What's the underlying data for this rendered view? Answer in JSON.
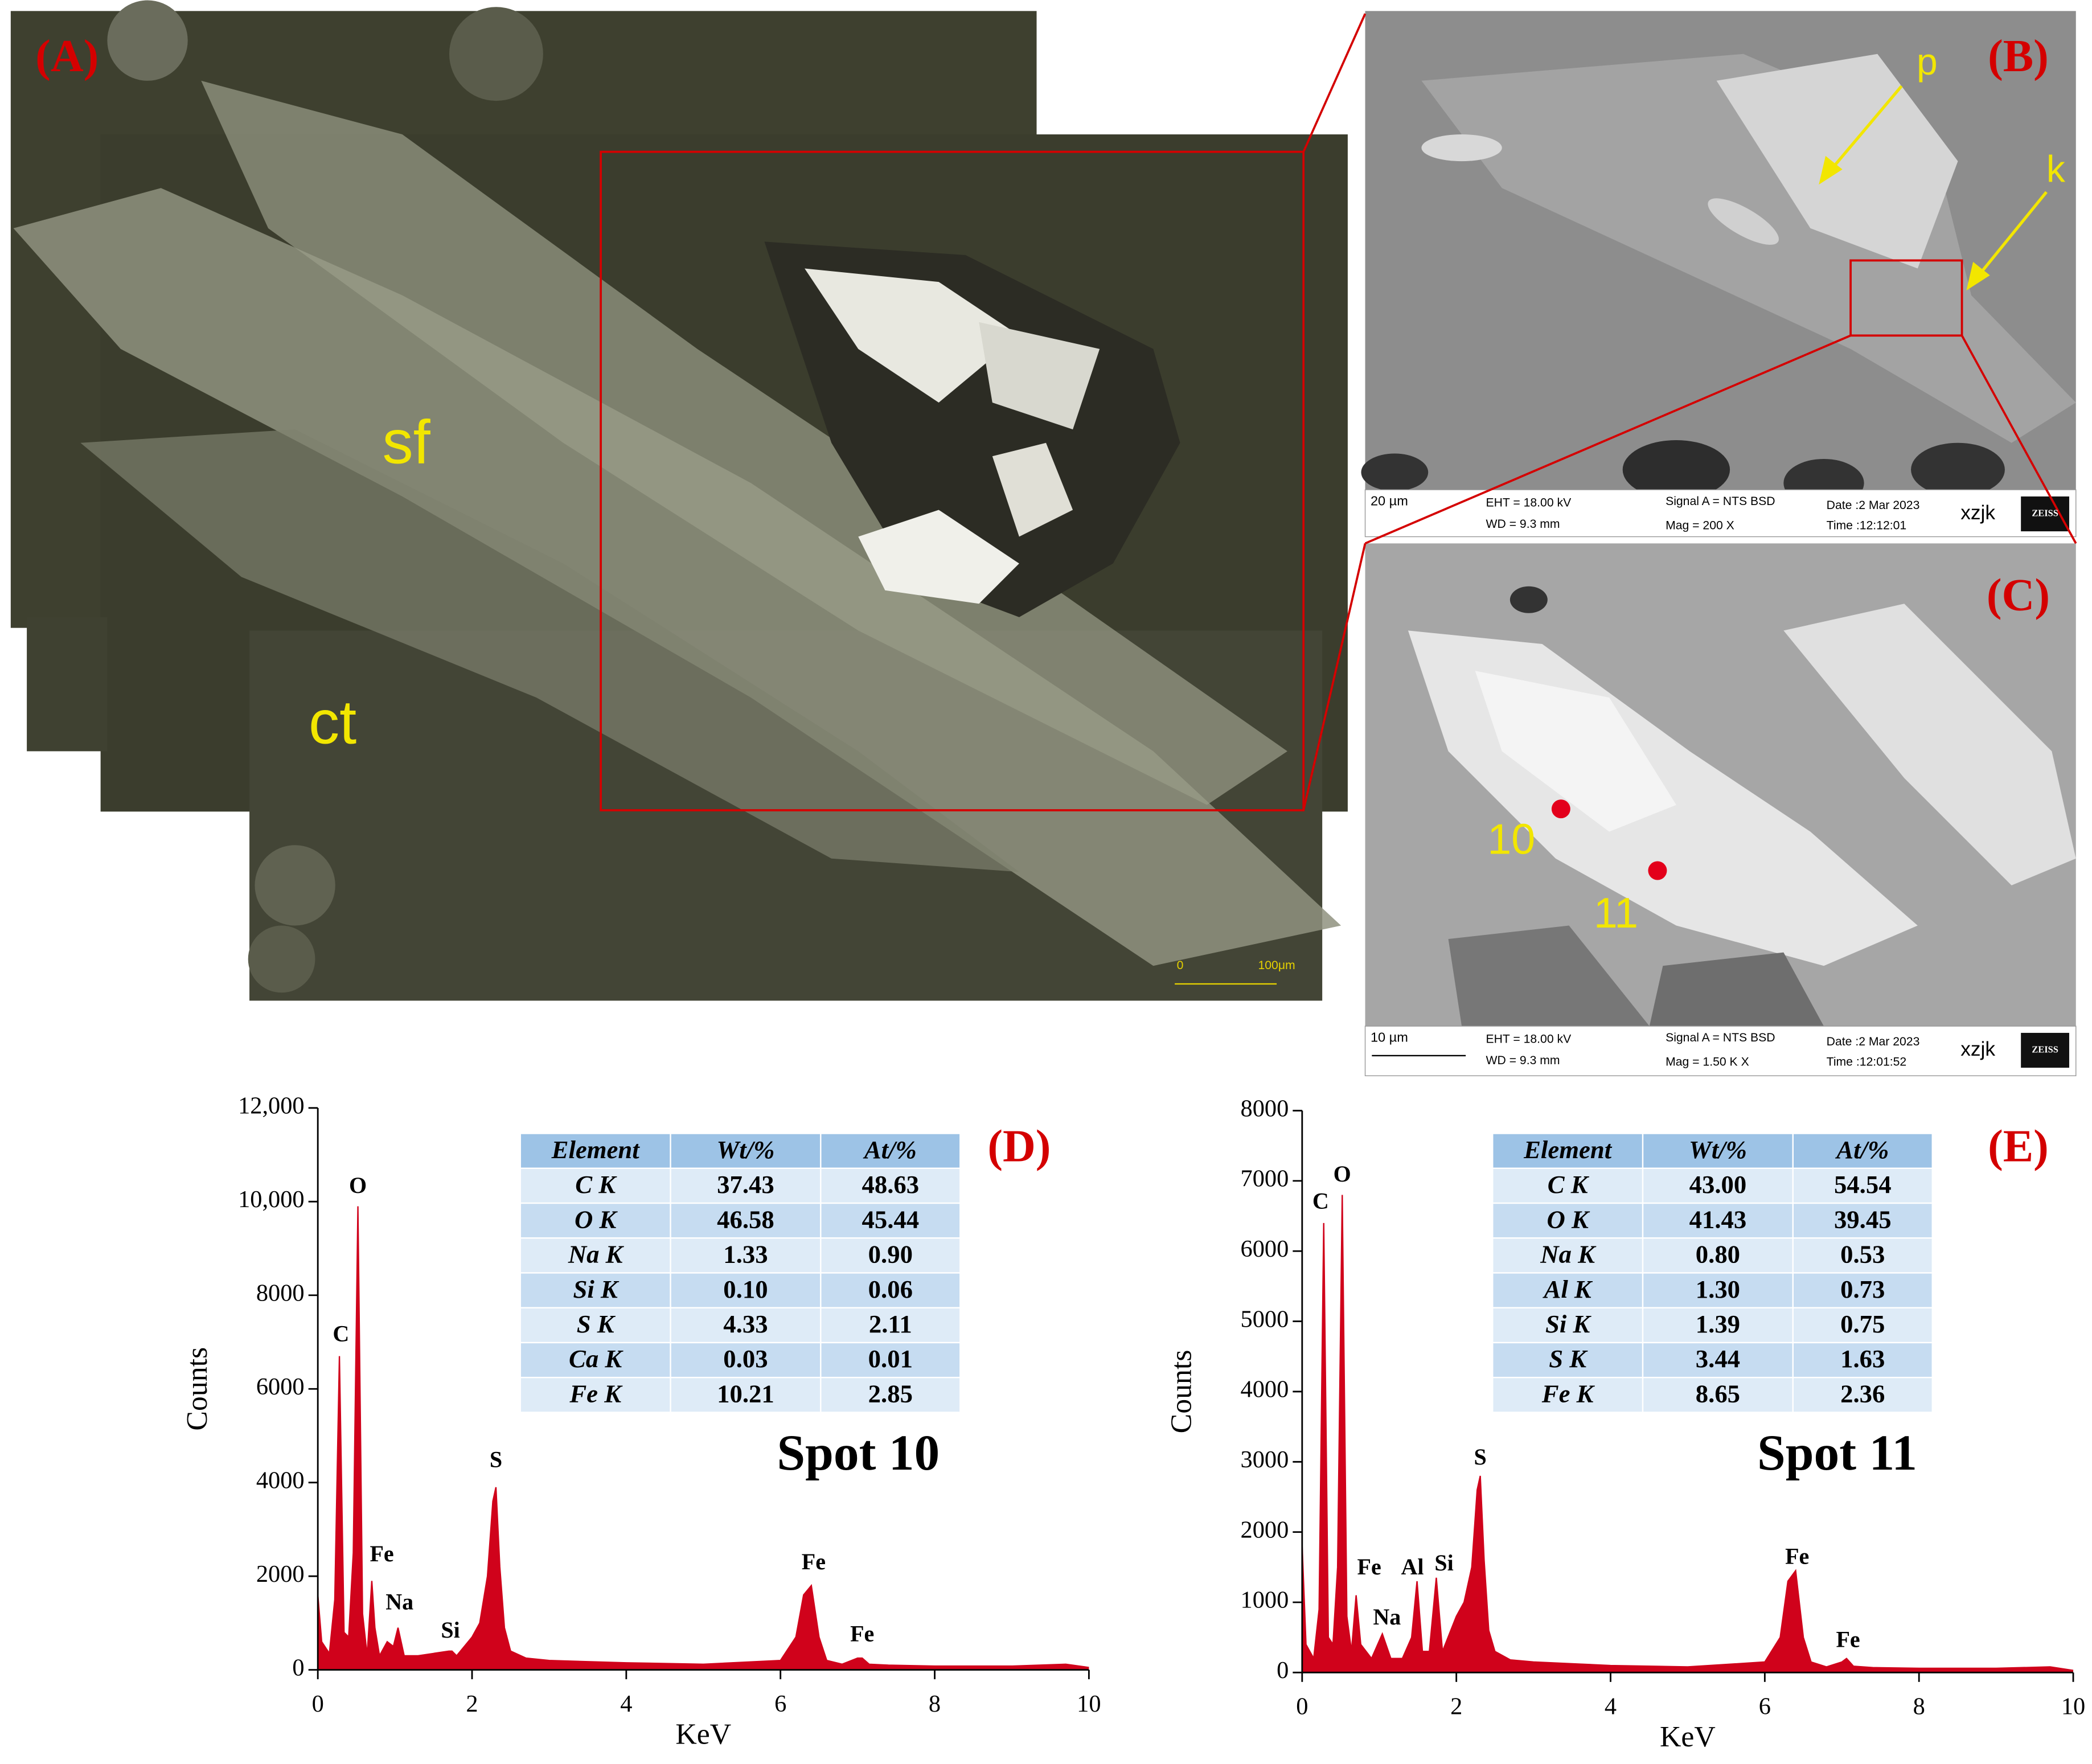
{
  "panels": {
    "A": {
      "label": "(A)",
      "annotations": [
        "sf",
        "ct"
      ],
      "scale_bar": [
        "0",
        "100μm"
      ]
    },
    "B": {
      "label": "(B)",
      "annotations": [
        "p",
        "k"
      ],
      "info": [
        "20 µm",
        "EHT = 18.00 kV",
        "WD = 9.3 mm",
        "Signal A = NTS BSD",
        "Mag =   200 X",
        "Date :2 Mar 2023",
        "Time :12:12:01",
        "xzjk",
        "ZEISS"
      ]
    },
    "C": {
      "label": "(C)",
      "annotations": [
        "10",
        "11"
      ],
      "info": [
        "10 µm",
        "EHT = 18.00 kV",
        "WD = 9.3 mm",
        "Signal A = NTS BSD",
        "Mag =   1.50 K X",
        "Date :2 Mar 2023",
        "Time :12:01:52",
        "xzjk",
        "ZEISS"
      ]
    }
  },
  "chart_data": [
    {
      "type": "area",
      "label": "(D)",
      "subtitle": "Spot 10",
      "xlabel": "KeV",
      "ylabel": "Counts",
      "color": "#d0021b",
      "xlim": [
        0,
        10
      ],
      "xticks": [
        0,
        2,
        4,
        6,
        8,
        10
      ],
      "ylim": [
        0,
        12000
      ],
      "yticks": [
        0,
        2000,
        4000,
        6000,
        8000,
        {
          "value": 10000,
          "label": "10,000"
        },
        {
          "value": 12000,
          "label": "12,000"
        }
      ],
      "x": [
        0,
        0.05,
        0.15,
        0.22,
        0.28,
        0.34,
        0.4,
        0.46,
        0.52,
        0.58,
        0.64,
        0.7,
        0.74,
        0.8,
        0.9,
        0.98,
        1.04,
        1.12,
        1.3,
        1.5,
        1.7,
        1.74,
        1.8,
        2.0,
        2.1,
        2.2,
        2.27,
        2.31,
        2.36,
        2.42,
        2.5,
        2.7,
        3.0,
        4,
        5,
        6,
        6.2,
        6.3,
        6.4,
        6.5,
        6.6,
        6.8,
        7.0,
        7.06,
        7.15,
        7.4,
        8,
        9,
        9.7,
        10
      ],
      "values": [
        1600,
        600,
        350,
        1500,
        6700,
        800,
        700,
        2500,
        9900,
        1200,
        300,
        1900,
        900,
        300,
        600,
        500,
        900,
        300,
        300,
        350,
        400,
        400,
        300,
        700,
        1000,
        2000,
        3600,
        3900,
        2200,
        900,
        400,
        250,
        200,
        150,
        120,
        200,
        700,
        1600,
        1800,
        700,
        200,
        120,
        250,
        250,
        120,
        100,
        80,
        80,
        120,
        50
      ],
      "peak_labels": [
        "O",
        "C",
        "Fe",
        "Na",
        "Si",
        "S",
        "Fe",
        "Fe"
      ],
      "table": {
        "header": [
          "Element",
          "Wt/%",
          "At/%"
        ],
        "rows": [
          [
            "C K",
            "37.43",
            "48.63"
          ],
          [
            "O K",
            "46.58",
            "45.44"
          ],
          [
            "Na K",
            "1.33",
            "0.90"
          ],
          [
            "Si K",
            "0.10",
            "0.06"
          ],
          [
            "S K",
            "4.33",
            "2.11"
          ],
          [
            "Ca K",
            "0.03",
            "0.01"
          ],
          [
            "Fe K",
            "10.21",
            "2.85"
          ]
        ]
      }
    },
    {
      "type": "area",
      "label": "(E)",
      "subtitle": "Spot 11",
      "xlabel": "KeV",
      "ylabel": "Counts",
      "color": "#d0021b",
      "xlim": [
        0,
        10
      ],
      "xticks": [
        0,
        2,
        4,
        6,
        8,
        10
      ],
      "ylim": [
        0,
        8000
      ],
      "yticks": [
        0,
        1000,
        2000,
        3000,
        4000,
        5000,
        6000,
        7000,
        8000
      ],
      "x": [
        0,
        0.05,
        0.15,
        0.22,
        0.28,
        0.34,
        0.4,
        0.46,
        0.52,
        0.58,
        0.64,
        0.7,
        0.76,
        0.9,
        1.04,
        1.15,
        1.3,
        1.42,
        1.49,
        1.56,
        1.65,
        1.74,
        1.82,
        2.0,
        2.1,
        2.2,
        2.27,
        2.31,
        2.36,
        2.42,
        2.5,
        2.7,
        3.0,
        4,
        5,
        6,
        6.2,
        6.3,
        6.4,
        6.5,
        6.6,
        6.8,
        7.0,
        7.06,
        7.15,
        7.4,
        8,
        9,
        9.7,
        10
      ],
      "values": [
        1800,
        400,
        200,
        900,
        6400,
        500,
        400,
        1500,
        6800,
        800,
        300,
        1100,
        400,
        200,
        550,
        200,
        200,
        500,
        1300,
        300,
        300,
        1350,
        300,
        800,
        1000,
        1500,
        2600,
        2800,
        1600,
        600,
        300,
        180,
        150,
        100,
        80,
        150,
        500,
        1300,
        1450,
        500,
        150,
        80,
        150,
        200,
        90,
        70,
        60,
        60,
        80,
        30
      ],
      "peak_labels": [
        "C",
        "O",
        "Fe",
        "Na",
        "Al",
        "Si",
        "S",
        "Fe",
        "Fe"
      ],
      "table": {
        "header": [
          "Element",
          "Wt/%",
          "At/%"
        ],
        "rows": [
          [
            "C K",
            "43.00",
            "54.54"
          ],
          [
            "O K",
            "41.43",
            "39.45"
          ],
          [
            "Na K",
            "0.80",
            "0.53"
          ],
          [
            "Al K",
            "1.30",
            "0.73"
          ],
          [
            "Si K",
            "1.39",
            "0.75"
          ],
          [
            "S K",
            "3.44",
            "1.63"
          ],
          [
            "Fe K",
            "8.65",
            "2.36"
          ]
        ]
      }
    }
  ]
}
